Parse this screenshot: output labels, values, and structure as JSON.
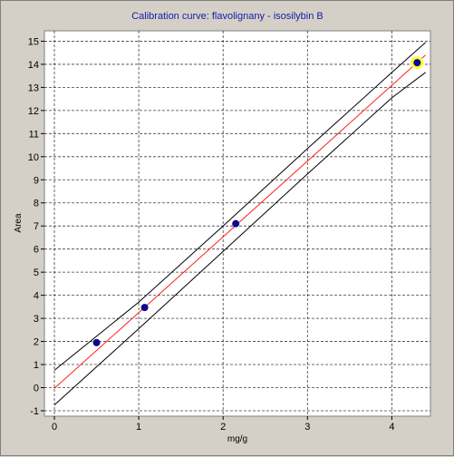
{
  "chart_data": {
    "type": "scatter",
    "title": "Calibration curve: flavolignany - isosilybin B",
    "xlabel": "mg/g",
    "ylabel": "Area",
    "xlim": [
      0,
      4.5
    ],
    "ylim": [
      -1,
      15.6
    ],
    "x_ticks": [
      0,
      1,
      2,
      3,
      4
    ],
    "y_ticks": [
      -1,
      0,
      1,
      2,
      3,
      4,
      5,
      6,
      7,
      8,
      9,
      10,
      11,
      12,
      13,
      14,
      15
    ],
    "grid": true,
    "points": [
      {
        "x": 0.5,
        "y": 1.95
      },
      {
        "x": 1.07,
        "y": 3.47
      },
      {
        "x": 2.15,
        "y": 7.1
      },
      {
        "x": 4.3,
        "y": 14.07,
        "highlighted": true
      }
    ],
    "regression": {
      "slope": 3.28,
      "intercept": -0.03
    },
    "confidence_band": {
      "upper": [
        [
          0,
          0.75
        ],
        [
          1.0,
          3.7
        ],
        [
          2.0,
          7.0
        ],
        [
          3.0,
          10.35
        ],
        [
          4.0,
          13.65
        ],
        [
          4.4,
          14.95
        ]
      ],
      "lower": [
        [
          0,
          -0.75
        ],
        [
          1.0,
          2.55
        ],
        [
          2.0,
          5.9
        ],
        [
          3.0,
          9.25
        ],
        [
          4.0,
          12.55
        ],
        [
          4.4,
          13.65
        ]
      ]
    },
    "colors": {
      "point": "#0a0a8c",
      "highlight": "#ffff33",
      "regression_line": "#ff2020",
      "band_line": "#000000",
      "grid": "#000000",
      "plot_background": "#ffffff",
      "title": "#1a1aa6"
    }
  }
}
